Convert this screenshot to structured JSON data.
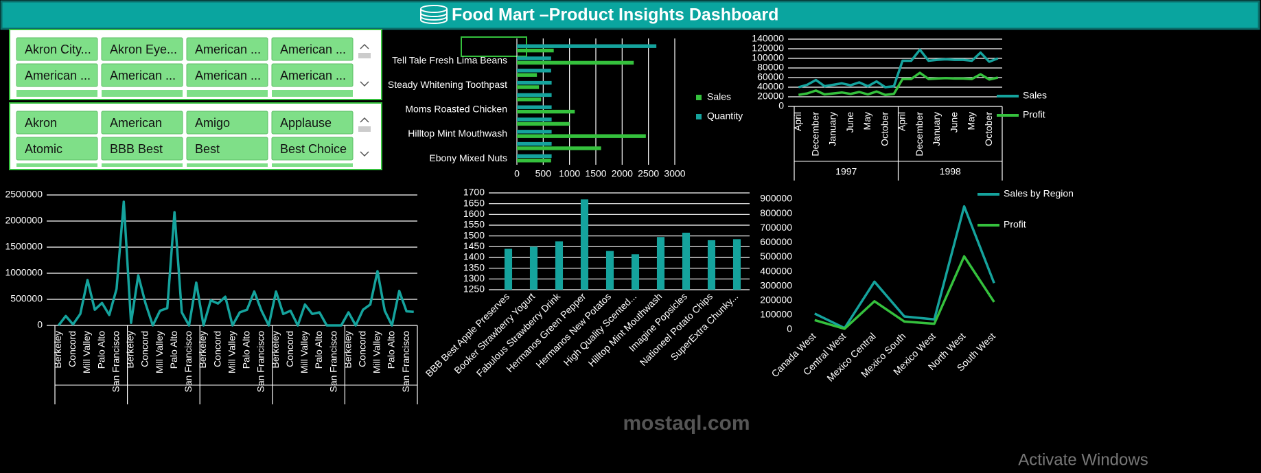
{
  "header": {
    "title": "Food Mart –Product Insights Dashboard"
  },
  "slicers": [
    {
      "items": [
        "Akron City...",
        "Akron Eye...",
        "American ...",
        "American ...",
        "American ...",
        "American ...",
        "American ...",
        "American ..."
      ]
    },
    {
      "items": [
        "Akron",
        "American",
        "Amigo",
        "Applause",
        "Atomic",
        "BBB Best",
        "Best",
        "Best Choice"
      ]
    }
  ],
  "watermarks": [
    "mostaql.com",
    "Activate Windows"
  ],
  "chart_data": [
    {
      "type": "bar",
      "orientation": "horizontal",
      "categories": [
        null,
        "Tell Tale Fresh Lima Beans",
        null,
        "Steady Whitening Toothpast",
        null,
        "Moms Roasted Chicken",
        null,
        "Hilltop Mint Mouthwash",
        null,
        "Ebony Mixed Nuts"
      ],
      "series": [
        {
          "name": "Sales",
          "color": "#35c13d",
          "values": [
            700,
            2220,
            380,
            420,
            460,
            1100,
            1000,
            2450,
            1600,
            650
          ]
        },
        {
          "name": "Quantity",
          "color": "#15a39d",
          "values": [
            2650,
            650,
            650,
            660,
            660,
            660,
            660,
            660,
            660,
            660
          ]
        }
      ],
      "xlim": [
        0,
        3000
      ],
      "xticks": [
        0,
        500,
        1000,
        1500,
        2000,
        2500,
        3000
      ],
      "grid": true
    },
    {
      "type": "line",
      "categories": [
        "April",
        null,
        "December",
        null,
        "January",
        null,
        "June",
        null,
        "May",
        null,
        "October",
        null,
        "April",
        null,
        "December",
        null,
        "January",
        null,
        "June",
        null,
        "May",
        null,
        "October",
        null
      ],
      "groups": [
        "1997",
        "1998"
      ],
      "series": [
        {
          "name": "Sales",
          "color": "#15a39d",
          "values": [
            40000,
            45000,
            55000,
            42000,
            45000,
            48000,
            44000,
            50000,
            42000,
            52000,
            40000,
            42000,
            95000,
            95000,
            118000,
            95000,
            97000,
            98000,
            97000,
            97000,
            95000,
            112000,
            93000,
            100000
          ]
        },
        {
          "name": "Profit",
          "color": "#35c13d",
          "values": [
            24000,
            27000,
            33000,
            25000,
            27000,
            29000,
            26000,
            30000,
            25000,
            31000,
            24000,
            26000,
            57000,
            57000,
            70000,
            57000,
            58000,
            59000,
            58000,
            58000,
            57000,
            67000,
            56000,
            60000
          ]
        }
      ],
      "ylim": [
        0,
        140000
      ],
      "yticks": [
        0,
        20000,
        40000,
        60000,
        80000,
        100000,
        120000,
        140000
      ],
      "grid": true
    },
    {
      "type": "line",
      "categories": [
        "Berkeley",
        null,
        "Concord",
        null,
        "Mill Valley",
        null,
        "Palo Alto",
        null,
        "San Francisco",
        null,
        "Berkeley",
        null,
        "Concord",
        null,
        "Mill Valley",
        null,
        "Palo Alto",
        null,
        "San Francisco",
        null,
        "Berkeley",
        null,
        "Concord",
        null,
        "Mill Valley",
        null,
        "Palo Alto",
        null,
        "San Francisco",
        null,
        "Berkeley",
        null,
        "Concord",
        null,
        "Mill Valley",
        null,
        "Palo Alto",
        null,
        "San Francisco",
        null,
        "Berkeley",
        null,
        "Concord",
        null,
        "Mill Valley",
        null,
        "Palo Alto",
        null,
        "San Francisco",
        null
      ],
      "groups": [
        null,
        null,
        null,
        null,
        null
      ],
      "series": [
        {
          "color": "#15a39d",
          "values": [
            0,
            180000,
            20000,
            220000,
            870000,
            300000,
            430000,
            200000,
            700000,
            2370000,
            50000,
            960000,
            420000,
            0,
            280000,
            330000,
            2170000,
            250000,
            0,
            820000,
            0,
            480000,
            420000,
            550000,
            0,
            250000,
            300000,
            650000,
            280000,
            0,
            650000,
            220000,
            280000,
            0,
            400000,
            220000,
            250000,
            0,
            0,
            0,
            250000,
            0,
            300000,
            400000,
            1040000,
            280000,
            0,
            660000,
            270000,
            260000
          ]
        }
      ],
      "ylim": [
        0,
        2500000
      ],
      "yticks": [
        0,
        500000,
        1000000,
        1500000,
        2000000,
        2500000
      ],
      "grid": true
    },
    {
      "type": "bar",
      "orientation": "vertical",
      "categories": [
        "BBB Best Apple Preserves",
        "Booker Strawberry Yogurt",
        "Fabulous Strawberry Drink",
        "Hermanos Green Pepper",
        "Hermanos New Potatos",
        "High Quality Scented...",
        "Hilltop Mint Mouthwash",
        "Imagine Popsicles",
        "Nationeel Potato Chips",
        "SuperExtra Chunky..."
      ],
      "series": [
        {
          "color": "#15a39d",
          "values": [
            1440,
            1450,
            1475,
            1670,
            1430,
            1415,
            1495,
            1515,
            1480,
            1485
          ]
        }
      ],
      "ylim": [
        1250,
        1700
      ],
      "yticks": [
        1250,
        1300,
        1350,
        1400,
        1450,
        1500,
        1550,
        1600,
        1650,
        1700
      ],
      "grid": true
    },
    {
      "type": "line",
      "categories": [
        "Canada West",
        "Central West",
        "Mexico Central",
        "Mexico South",
        "Mexico West",
        "North West",
        "South West"
      ],
      "series": [
        {
          "name": "Sales by Region",
          "color": "#15a39d",
          "values": [
            110000,
            10000,
            330000,
            90000,
            70000,
            850000,
            320000
          ]
        },
        {
          "name": "Profit",
          "color": "#35c13d",
          "values": [
            65000,
            5000,
            195000,
            55000,
            40000,
            505000,
            190000
          ]
        }
      ],
      "ylim": [
        0,
        900000
      ],
      "yticks": [
        0,
        100000,
        200000,
        300000,
        400000,
        500000,
        600000,
        700000,
        800000,
        900000
      ],
      "grid": false
    }
  ]
}
